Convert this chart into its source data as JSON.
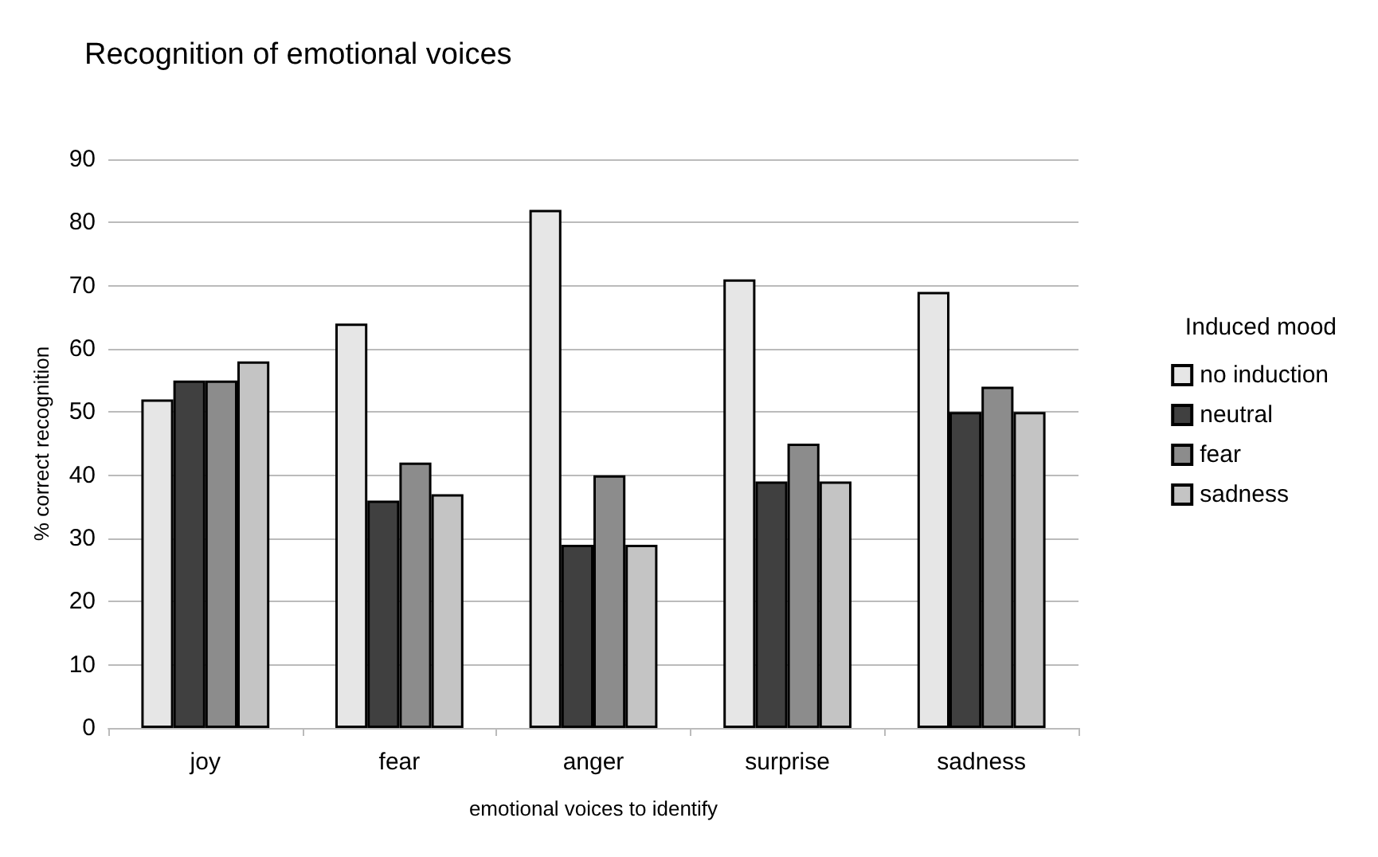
{
  "chart_data": {
    "type": "bar",
    "title": "Recognition of emotional voices",
    "xlabel": "emotional voices to identify",
    "ylabel": "% correct recognition",
    "legend_title": "Induced mood",
    "categories": [
      "joy",
      "fear",
      "anger",
      "surprise",
      "sadness"
    ],
    "series": [
      {
        "name": "no induction",
        "color": "#e6e6e6",
        "values": [
          52,
          64,
          82,
          71,
          69
        ]
      },
      {
        "name": "neutral",
        "color": "#404040",
        "values": [
          55,
          36,
          29,
          39,
          50
        ]
      },
      {
        "name": "fear",
        "color": "#8c8c8c",
        "values": [
          55,
          42,
          40,
          45,
          54
        ]
      },
      {
        "name": "sadness",
        "color": "#c4c4c4",
        "values": [
          58,
          37,
          29,
          39,
          50
        ]
      }
    ],
    "ylim": [
      0,
      90
    ],
    "yticks": [
      0,
      10,
      20,
      30,
      40,
      50,
      60,
      70,
      80,
      90
    ],
    "grid": "y",
    "legend": "right"
  }
}
